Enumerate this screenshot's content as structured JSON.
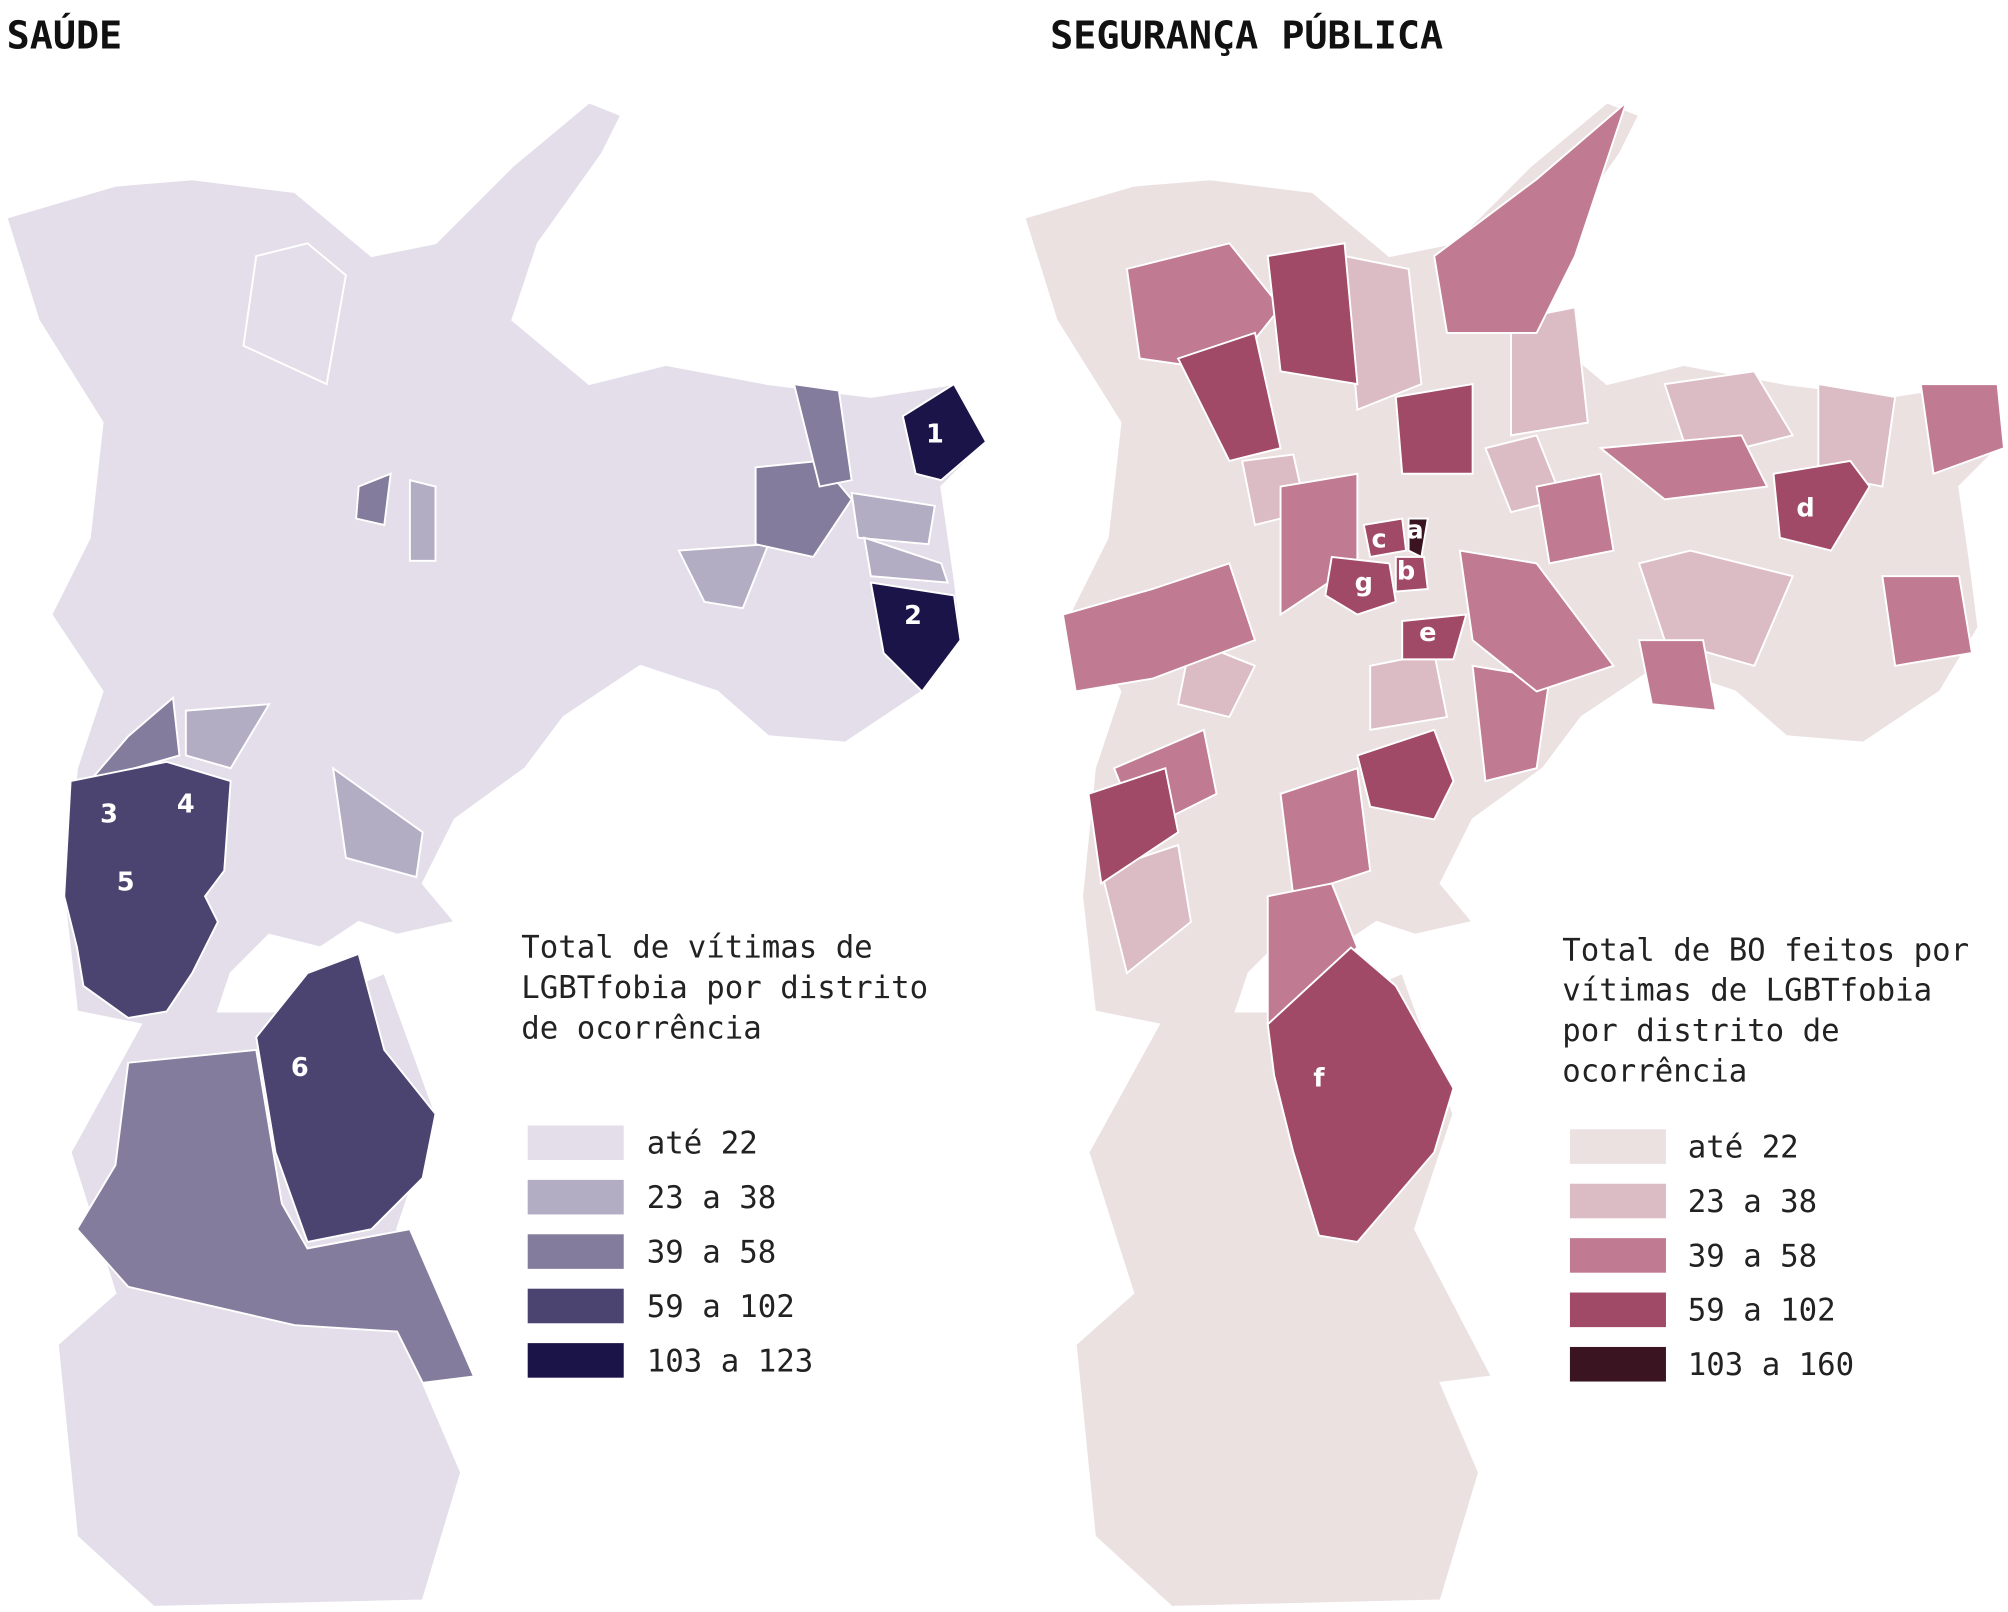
{
  "panels": [
    {
      "title": "SAÚDE",
      "legend": {
        "title_lines": [
          "Total de vítimas de",
          "LGBTfobia por distrito",
          "de ocorrência"
        ],
        "items": [
          {
            "label": "até 22",
            "color": "#e3dee9"
          },
          {
            "label": "23 a 38",
            "color": "#b3adc3"
          },
          {
            "label": "39 a 58",
            "color": "#847c9c"
          },
          {
            "label": "59 a 102",
            "color": "#4c4470"
          },
          {
            "label": "103 a 123",
            "color": "#1b1448"
          }
        ]
      },
      "map_labels": [
        "1",
        "2",
        "3",
        "4",
        "5",
        "6"
      ]
    },
    {
      "title": "SEGURANÇA PÚBLICA",
      "legend": {
        "title_lines": [
          "Total de BO feitos por",
          "vítimas de LGBTfobia",
          "por distrito de",
          "ocorrência"
        ],
        "items": [
          {
            "label": "até 22",
            "color": "#ebe1e1"
          },
          {
            "label": "23 a 38",
            "color": "#dcbcc4"
          },
          {
            "label": "39 a 58",
            "color": "#c07a91"
          },
          {
            "label": "59 a 102",
            "color": "#a14a68"
          },
          {
            "label": "103 a 160",
            "color": "#3a1421"
          }
        ]
      },
      "map_labels": [
        "a",
        "b",
        "c",
        "d",
        "e",
        "f",
        "g"
      ]
    }
  ]
}
